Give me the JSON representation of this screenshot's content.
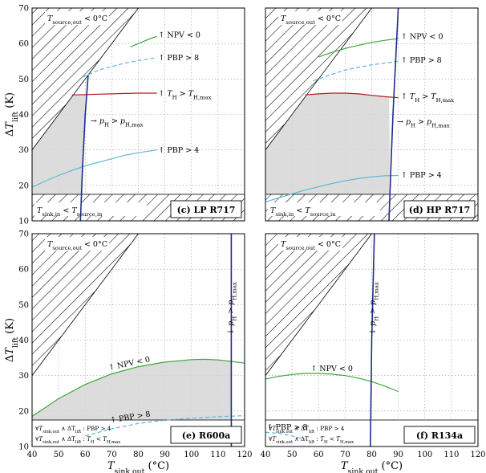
{
  "chart_data": [
    {
      "type": "line",
      "panel": "(c) LP R717",
      "xlim": [
        40,
        120
      ],
      "ylim": [
        10,
        70
      ],
      "infeasible_labels": {
        "top": "T_source,out < 0°C",
        "bottom": "T_sink,in < T_source,in"
      },
      "series": [
        {
          "color": "#3ea63e",
          "x": [
            77,
            80,
            85,
            87
          ],
          "y": [
            59,
            60,
            61.5,
            62
          ]
        },
        {
          "color": "#5ab8dc",
          "dash": true,
          "x": [
            59,
            65,
            70,
            75,
            80,
            87
          ],
          "y": [
            50.5,
            52.5,
            53.5,
            54.5,
            55.2,
            56
          ]
        },
        {
          "color": "#b0191e",
          "x": [
            55,
            60,
            65,
            70,
            75,
            80,
            87
          ],
          "y": [
            45.5,
            45.6,
            45.7,
            45.8,
            45.9,
            46,
            46
          ]
        },
        {
          "color": "#5ab8dc",
          "x": [
            40,
            45,
            50,
            55,
            60,
            65,
            70,
            75,
            80,
            87
          ],
          "y": [
            19.5,
            21.2,
            22.8,
            24.2,
            25.5,
            26.5,
            27.5,
            28.5,
            29.2,
            30
          ]
        },
        {
          "color": "#1e2d8c",
          "x": [
            58.2,
            59,
            60,
            61.1
          ],
          "y": [
            10,
            25,
            40,
            51
          ]
        }
      ],
      "annotations": [
        "↑ NPV < 0",
        "↑ PBP > 8",
        "↑ T_H > T_H,max",
        "→ p_H > p_H,max",
        "↑ PBP > 4"
      ]
    },
    {
      "type": "line",
      "panel": "(d) HP R717",
      "xlim": [
        40,
        120
      ],
      "ylim": [
        10,
        70
      ],
      "infeasible_labels": {
        "top": "T_source,out < 0°C",
        "bottom": "T_sink,in < T_source,in"
      },
      "series": [
        {
          "color": "#3ea63e",
          "x": [
            60,
            65,
            70,
            75,
            80,
            85,
            90
          ],
          "y": [
            56.2,
            57.5,
            58.6,
            59.5,
            60.3,
            60.9,
            61.4
          ]
        },
        {
          "color": "#5ab8dc",
          "dash": true,
          "x": [
            58,
            65,
            70,
            75,
            80,
            85,
            90
          ],
          "y": [
            49.5,
            51.3,
            52.5,
            53.3,
            54,
            54.5,
            55
          ]
        },
        {
          "color": "#b0191e",
          "x": [
            55,
            60,
            65,
            70,
            75,
            80,
            85,
            90
          ],
          "y": [
            45.5,
            45.8,
            46,
            46,
            45.8,
            45.4,
            45,
            44.7
          ]
        },
        {
          "color": "#5ab8dc",
          "x": [
            40,
            45,
            50,
            55,
            60,
            65,
            70,
            75,
            80,
            85,
            90
          ],
          "y": [
            15.3,
            16.5,
            17.6,
            18.7,
            19.6,
            20.5,
            21.3,
            21.9,
            22.4,
            22.7,
            22.8
          ]
        },
        {
          "color": "#1e2d8c",
          "x": [
            86.5,
            87.2,
            88,
            89,
            90
          ],
          "y": [
            10,
            25,
            40,
            55,
            70
          ]
        }
      ],
      "annotations": [
        "↑ NPV < 0",
        "↑ PBP > 8",
        "↑ T_H > T_H,max",
        "→ p_H > p_H,max",
        "↑ PBP > 4"
      ]
    },
    {
      "type": "line",
      "panel": "(e) R600a",
      "xlim": [
        40,
        120
      ],
      "ylim": [
        10,
        70
      ],
      "infeasible_labels": {
        "top": "T_source,out < 0°C",
        "legend": [
          "∀T_sink,out ∧ ΔT_lift : PBP > 4",
          "∀T_sink,out ∧ ΔT_lift : T_H < T_H,max"
        ]
      },
      "series": [
        {
          "color": "#3ea63e",
          "x": [
            40,
            50,
            60,
            70,
            80,
            90,
            100,
            105,
            110,
            115,
            120
          ],
          "y": [
            18.5,
            23.5,
            27.5,
            30.5,
            32.5,
            33.8,
            34.5,
            34.6,
            34.4,
            34,
            33.5
          ]
        },
        {
          "color": "#5ab8dc",
          "dash": true,
          "x": [
            60,
            70,
            80,
            90,
            100,
            110,
            120
          ],
          "y": [
            13,
            15,
            16.5,
            17.4,
            18,
            18.4,
            18.7
          ]
        },
        {
          "color": "#1e2d8c",
          "x": [
            115,
            115,
            115
          ],
          "y": [
            10,
            40,
            70
          ]
        }
      ],
      "annotations": [
        "↑ NPV < 0",
        "↑ PBP > 8",
        "↓ p_H > p_H,max"
      ]
    },
    {
      "type": "line",
      "panel": "(f) R134a",
      "xlim": [
        40,
        120
      ],
      "ylim": [
        10,
        70
      ],
      "infeasible_labels": {
        "top": "T_source,out < 0°C",
        "legend": [
          "∀T_sink,out ∧ ΔT_lift : PBP > 4",
          "∀T_sink,out ∧ ΔT_lift : T_H < T_H,max"
        ]
      },
      "series": [
        {
          "color": "#3ea63e",
          "x": [
            40,
            45,
            50,
            55,
            60,
            65,
            70,
            75,
            80,
            85,
            90
          ],
          "y": [
            29,
            29.8,
            30.3,
            30.6,
            30.6,
            30.4,
            30,
            29.3,
            28.3,
            27,
            25.5
          ]
        },
        {
          "color": "#5ab8dc",
          "dash": true,
          "x": [
            40,
            45,
            50,
            55
          ],
          "y": [
            14,
            13.7,
            13,
            12
          ]
        },
        {
          "color": "#1e2d8c",
          "x": [
            79.5,
            80,
            81
          ],
          "y": [
            10,
            40,
            70
          ]
        }
      ],
      "annotations": [
        "↑ NPV < 0",
        "↑ PBP > 8",
        "↓ p_H > p_H,max"
      ]
    }
  ],
  "axes": {
    "ylabel": "ΔT_lift (K)",
    "xlabel": "T_sink,out (°C)",
    "xticks": [
      "40",
      "50",
      "60",
      "70",
      "80",
      "90",
      "100",
      "110",
      "120"
    ],
    "yticks": [
      "10",
      "20",
      "30",
      "40",
      "50",
      "60",
      "70"
    ]
  }
}
